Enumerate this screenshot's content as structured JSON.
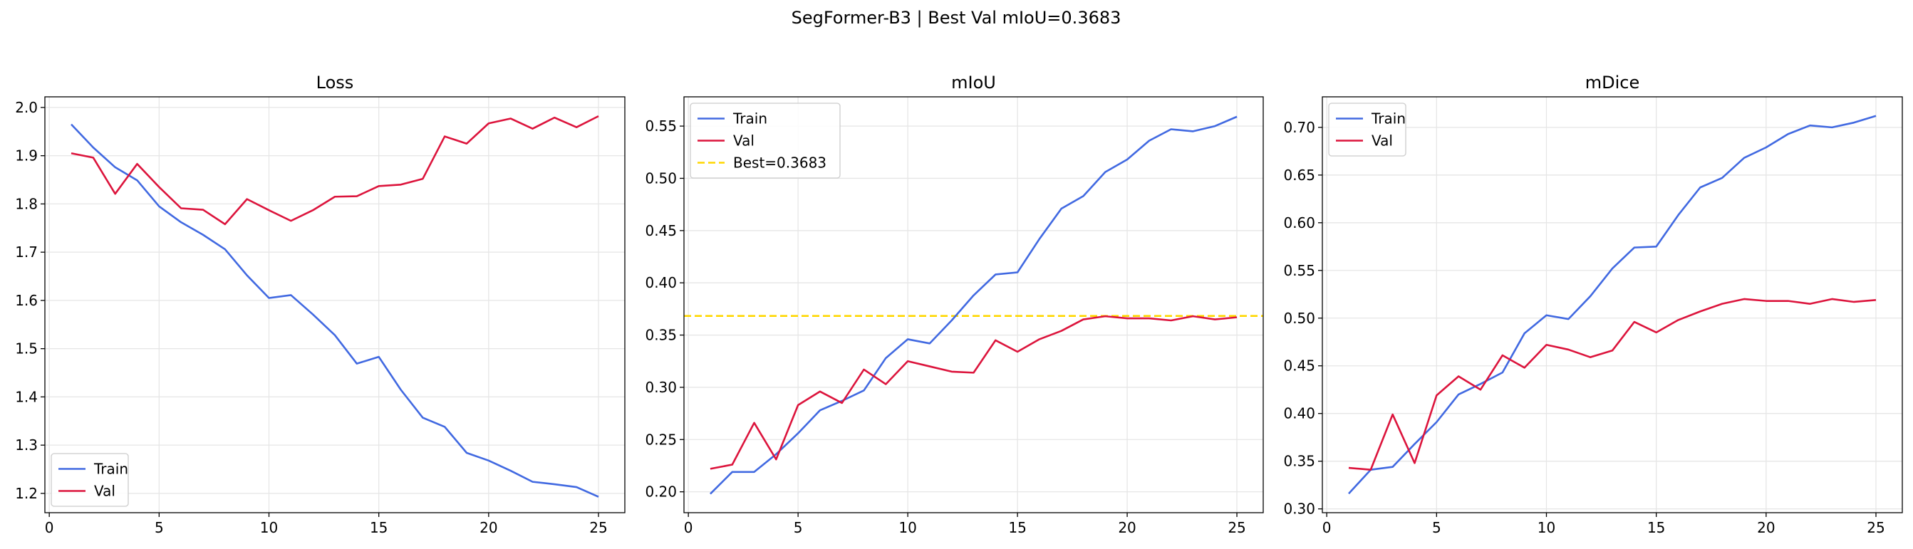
{
  "figure": {
    "title": "SegFormer-B3 | Best Val mIoU=0.3683"
  },
  "colors": {
    "train": "#4169e1",
    "val": "#dc143c",
    "best": "#ffd700",
    "grid": "#e6e6e6"
  },
  "chart_data": [
    {
      "type": "line",
      "title": "Loss",
      "xlabel": "",
      "ylabel": "",
      "xlim": [
        -0.2,
        26.2
      ],
      "ylim": [
        1.16,
        2.022
      ],
      "xticks": [
        0,
        5,
        10,
        15,
        20,
        25
      ],
      "yticks": [
        1.2,
        1.3,
        1.4,
        1.5,
        1.6,
        1.7,
        1.8,
        1.9,
        2.0
      ],
      "ytick_labels": [
        "1.2",
        "1.3",
        "1.4",
        "1.5",
        "1.6",
        "1.7",
        "1.8",
        "1.9",
        "2.0"
      ],
      "grid": true,
      "legend_position": "lower-left",
      "x": [
        1,
        2,
        3,
        4,
        5,
        6,
        7,
        8,
        9,
        10,
        11,
        12,
        13,
        14,
        15,
        16,
        17,
        18,
        19,
        20,
        21,
        22,
        23,
        24,
        25
      ],
      "series": [
        {
          "name": "Train",
          "color_key": "train",
          "values": [
            1.965,
            1.917,
            1.876,
            1.849,
            1.795,
            1.762,
            1.736,
            1.706,
            1.652,
            1.605,
            1.611,
            1.571,
            1.528,
            1.469,
            1.483,
            1.415,
            1.357,
            1.338,
            1.284,
            1.268,
            1.247,
            1.224,
            1.219,
            1.213,
            1.193
          ]
        },
        {
          "name": "Val",
          "color_key": "val",
          "values": [
            1.905,
            1.896,
            1.821,
            1.883,
            1.835,
            1.791,
            1.788,
            1.758,
            1.81,
            1.787,
            1.765,
            1.787,
            1.815,
            1.816,
            1.837,
            1.84,
            1.852,
            1.94,
            1.925,
            1.967,
            1.977,
            1.956,
            1.979,
            1.959,
            1.982
          ]
        }
      ]
    },
    {
      "type": "line",
      "title": "mIoU",
      "xlabel": "",
      "ylabel": "",
      "xlim": [
        -0.2,
        26.2
      ],
      "ylim": [
        0.18,
        0.578
      ],
      "xticks": [
        0,
        5,
        10,
        15,
        20,
        25
      ],
      "yticks": [
        0.2,
        0.25,
        0.3,
        0.35,
        0.4,
        0.45,
        0.5,
        0.55
      ],
      "ytick_labels": [
        "0.20",
        "0.25",
        "0.30",
        "0.35",
        "0.40",
        "0.45",
        "0.50",
        "0.55"
      ],
      "grid": true,
      "legend_position": "upper-left",
      "x": [
        1,
        2,
        3,
        4,
        5,
        6,
        7,
        8,
        9,
        10,
        11,
        12,
        13,
        14,
        15,
        16,
        17,
        18,
        19,
        20,
        21,
        22,
        23,
        24,
        25
      ],
      "series": [
        {
          "name": "Train",
          "color_key": "train",
          "values": [
            0.198,
            0.219,
            0.219,
            0.236,
            0.256,
            0.278,
            0.287,
            0.297,
            0.328,
            0.346,
            0.342,
            0.364,
            0.388,
            0.408,
            0.41,
            0.442,
            0.471,
            0.483,
            0.506,
            0.518,
            0.536,
            0.547,
            0.545,
            0.55,
            0.559
          ]
        },
        {
          "name": "Val",
          "color_key": "val",
          "values": [
            0.222,
            0.226,
            0.266,
            0.231,
            0.283,
            0.296,
            0.285,
            0.317,
            0.303,
            0.325,
            0.32,
            0.315,
            0.314,
            0.345,
            0.334,
            0.346,
            0.354,
            0.365,
            0.368,
            0.366,
            0.366,
            0.364,
            0.368,
            0.365,
            0.367
          ]
        }
      ],
      "reference_line": {
        "name": "Best=0.3683",
        "value": 0.3683,
        "color_key": "best",
        "style": "dashed"
      }
    },
    {
      "type": "line",
      "title": "mDice",
      "xlabel": "",
      "ylabel": "",
      "xlim": [
        -0.2,
        26.2
      ],
      "ylim": [
        0.296,
        0.732
      ],
      "xticks": [
        0,
        5,
        10,
        15,
        20,
        25
      ],
      "yticks": [
        0.3,
        0.35,
        0.4,
        0.45,
        0.5,
        0.55,
        0.6,
        0.65,
        0.7
      ],
      "ytick_labels": [
        "0.30",
        "0.35",
        "0.40",
        "0.45",
        "0.50",
        "0.55",
        "0.60",
        "0.65",
        "0.70"
      ],
      "grid": true,
      "legend_position": "upper-left",
      "x": [
        1,
        2,
        3,
        4,
        5,
        6,
        7,
        8,
        9,
        10,
        11,
        12,
        13,
        14,
        15,
        16,
        17,
        18,
        19,
        20,
        21,
        22,
        23,
        24,
        25
      ],
      "series": [
        {
          "name": "Train",
          "color_key": "train",
          "values": [
            0.316,
            0.341,
            0.344,
            0.368,
            0.391,
            0.42,
            0.431,
            0.443,
            0.484,
            0.503,
            0.499,
            0.523,
            0.552,
            0.574,
            0.575,
            0.608,
            0.637,
            0.647,
            0.668,
            0.679,
            0.693,
            0.702,
            0.7,
            0.705,
            0.712
          ]
        },
        {
          "name": "Val",
          "color_key": "val",
          "values": [
            0.343,
            0.341,
            0.399,
            0.348,
            0.419,
            0.439,
            0.425,
            0.461,
            0.448,
            0.472,
            0.467,
            0.459,
            0.466,
            0.496,
            0.485,
            0.498,
            0.507,
            0.515,
            0.52,
            0.518,
            0.518,
            0.515,
            0.52,
            0.517,
            0.519
          ]
        }
      ]
    }
  ]
}
